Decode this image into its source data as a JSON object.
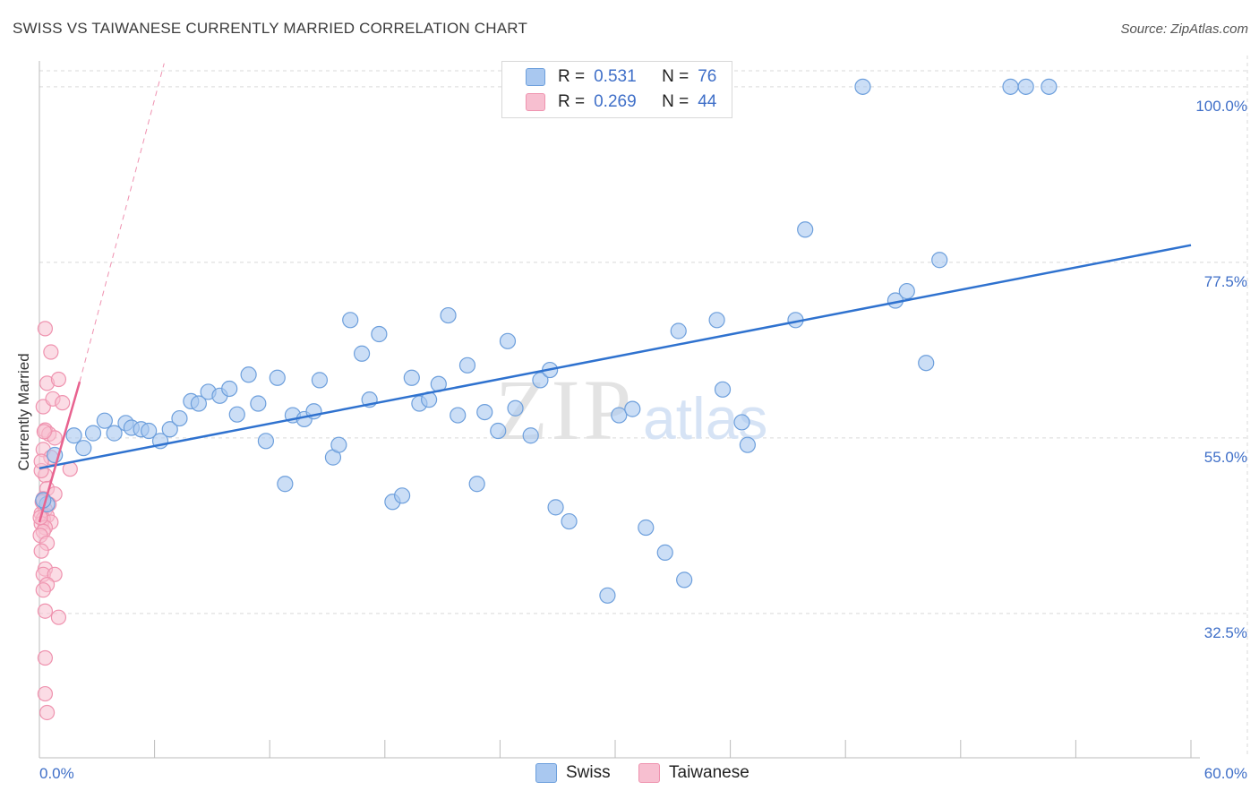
{
  "header": {
    "title": "SWISS VS TAIWANESE CURRENTLY MARRIED CORRELATION CHART",
    "source": "Source: ZipAtlas.com"
  },
  "watermark": {
    "zip": "ZIP",
    "atlas": "atlas"
  },
  "legend_top": {
    "swiss": {
      "r_label": "R =",
      "r_value": "0.531",
      "n_label": "N =",
      "n_value": "76"
    },
    "taiwanese": {
      "r_label": "R =",
      "r_value": "0.269",
      "n_label": "N =",
      "n_value": "44"
    }
  },
  "legend_bottom": {
    "swiss": "Swiss",
    "taiwanese": "Taiwanese"
  },
  "colors": {
    "swiss_fill": "#a9c8f0",
    "swiss_stroke": "#6d9fdc",
    "swiss_line": "#2f72cf",
    "taiwanese_fill": "#f7bfd0",
    "taiwanese_stroke": "#ef93af",
    "taiwanese_line": "#e8628f",
    "tick": "#3f6fc8",
    "grid": "#d9d9d9"
  },
  "chart_data": {
    "type": "scatter",
    "title": "SWISS VS TAIWANESE CURRENTLY MARRIED CORRELATION CHART",
    "xlabel": "",
    "ylabel": "Currently Married",
    "xlim": [
      0,
      60
    ],
    "ylim": [
      14,
      104
    ],
    "x_tick_labels": [
      "0.0%",
      "60.0%"
    ],
    "y_ticks": [
      32.5,
      55.0,
      77.5,
      100.0
    ],
    "y_tick_labels": [
      "32.5%",
      "55.0%",
      "77.5%",
      "100.0%"
    ],
    "grid": true,
    "series": [
      {
        "name": "Swiss",
        "R": 0.531,
        "N": 76,
        "points": [
          [
            0.4,
            46.5
          ],
          [
            0.8,
            52.8
          ],
          [
            1.8,
            55.3
          ],
          [
            2.3,
            53.7
          ],
          [
            2.8,
            55.6
          ],
          [
            3.4,
            57.2
          ],
          [
            3.9,
            55.6
          ],
          [
            4.5,
            56.9
          ],
          [
            4.8,
            56.3
          ],
          [
            5.3,
            56.1
          ],
          [
            5.7,
            55.9
          ],
          [
            6.3,
            54.6
          ],
          [
            6.8,
            56.1
          ],
          [
            7.3,
            57.5
          ],
          [
            7.9,
            59.7
          ],
          [
            8.3,
            59.4
          ],
          [
            8.8,
            60.9
          ],
          [
            9.4,
            60.4
          ],
          [
            9.9,
            61.3
          ],
          [
            10.3,
            58.0
          ],
          [
            10.9,
            63.1
          ],
          [
            11.4,
            59.4
          ],
          [
            11.8,
            54.6
          ],
          [
            12.4,
            62.7
          ],
          [
            12.8,
            49.1
          ],
          [
            13.2,
            57.9
          ],
          [
            13.8,
            57.4
          ],
          [
            14.3,
            58.4
          ],
          [
            14.6,
            62.4
          ],
          [
            15.3,
            52.5
          ],
          [
            15.6,
            54.1
          ],
          [
            16.2,
            70.1
          ],
          [
            16.8,
            65.8
          ],
          [
            17.2,
            59.9
          ],
          [
            17.7,
            68.3
          ],
          [
            18.4,
            46.8
          ],
          [
            18.9,
            47.6
          ],
          [
            19.4,
            62.7
          ],
          [
            19.8,
            59.4
          ],
          [
            20.3,
            59.9
          ],
          [
            20.8,
            61.9
          ],
          [
            21.3,
            70.7
          ],
          [
            21.8,
            57.9
          ],
          [
            22.3,
            64.3
          ],
          [
            22.8,
            49.1
          ],
          [
            23.2,
            58.3
          ],
          [
            23.9,
            55.9
          ],
          [
            24.4,
            67.4
          ],
          [
            24.8,
            58.8
          ],
          [
            25.6,
            55.3
          ],
          [
            26.1,
            62.4
          ],
          [
            26.6,
            63.7
          ],
          [
            26.9,
            46.1
          ],
          [
            27.6,
            44.3
          ],
          [
            29.6,
            34.8
          ],
          [
            30.2,
            57.9
          ],
          [
            30.9,
            58.7
          ],
          [
            31.6,
            43.5
          ],
          [
            32.6,
            40.3
          ],
          [
            33.3,
            68.7
          ],
          [
            33.6,
            36.8
          ],
          [
            35.3,
            70.1
          ],
          [
            35.6,
            61.2
          ],
          [
            36.6,
            57.0
          ],
          [
            36.9,
            54.1
          ],
          [
            39.4,
            70.1
          ],
          [
            39.9,
            81.7
          ],
          [
            42.9,
            100.0
          ],
          [
            44.6,
            72.6
          ],
          [
            45.2,
            73.8
          ],
          [
            46.2,
            64.6
          ],
          [
            46.9,
            77.8
          ],
          [
            50.6,
            100.0
          ],
          [
            51.4,
            100.0
          ],
          [
            52.6,
            100.0
          ],
          [
            0.2,
            47.0
          ]
        ],
        "trendline": {
          "x": [
            0,
            60
          ],
          "y": [
            51.1,
            79.7
          ]
        }
      },
      {
        "name": "Taiwanese",
        "R": 0.269,
        "N": 44,
        "points": [
          [
            0.3,
            69.0
          ],
          [
            0.6,
            66.0
          ],
          [
            0.4,
            62.0
          ],
          [
            0.2,
            59.0
          ],
          [
            0.7,
            60.0
          ],
          [
            1.0,
            62.5
          ],
          [
            1.2,
            59.5
          ],
          [
            0.3,
            56.0
          ],
          [
            0.5,
            55.5
          ],
          [
            0.8,
            55.0
          ],
          [
            0.2,
            53.5
          ],
          [
            0.6,
            52.5
          ],
          [
            1.6,
            51.0
          ],
          [
            0.3,
            50.2
          ],
          [
            0.1,
            50.8
          ],
          [
            0.4,
            48.5
          ],
          [
            0.8,
            47.8
          ],
          [
            0.2,
            47.2
          ],
          [
            0.5,
            46.5
          ],
          [
            0.3,
            45.8
          ],
          [
            0.1,
            45.3
          ],
          [
            0.4,
            45.0
          ],
          [
            0.2,
            44.6
          ],
          [
            0.6,
            44.2
          ],
          [
            0.1,
            44.0
          ],
          [
            0.3,
            43.5
          ],
          [
            0.2,
            43.0
          ],
          [
            0.05,
            42.5
          ],
          [
            0.4,
            41.5
          ],
          [
            0.1,
            40.5
          ],
          [
            0.3,
            38.2
          ],
          [
            0.2,
            37.5
          ],
          [
            0.8,
            37.5
          ],
          [
            0.4,
            36.2
          ],
          [
            0.2,
            35.5
          ],
          [
            0.3,
            32.8
          ],
          [
            1.0,
            32.0
          ],
          [
            0.3,
            26.8
          ],
          [
            0.3,
            22.2
          ],
          [
            0.4,
            19.8
          ],
          [
            0.15,
            46.8
          ],
          [
            0.25,
            55.8
          ],
          [
            0.1,
            52.0
          ],
          [
            0.05,
            44.8
          ]
        ],
        "trendline": {
          "x": [
            0,
            2.1
          ],
          "y": [
            44.2,
            62.2
          ]
        },
        "trendline_extension": {
          "x": [
            2.1,
            6.5
          ],
          "y": [
            62.2,
            103.0
          ]
        }
      }
    ]
  }
}
